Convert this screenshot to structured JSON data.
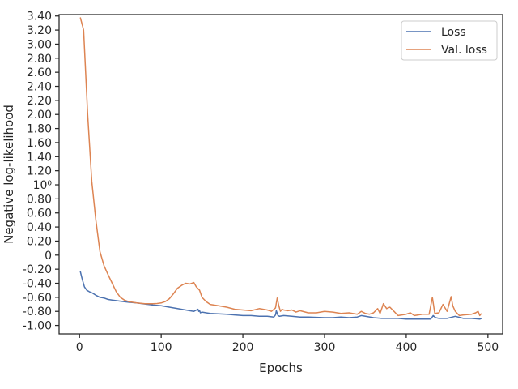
{
  "chart_data": {
    "type": "line",
    "title": "",
    "xlabel": "Epochs",
    "ylabel": "Negative log-likelihood",
    "xlim": [
      -25,
      518
    ],
    "ylim": [
      -1.12,
      3.42
    ],
    "x_ticks": [
      0,
      100,
      200,
      300,
      400,
      500
    ],
    "x_tick_labels": [
      "0",
      "100",
      "200",
      "300",
      "400",
      "500"
    ],
    "y_ticks": [
      -1.0,
      -0.8,
      -0.6,
      -0.4,
      -0.2,
      0,
      0.2,
      0.4,
      0.6,
      0.8,
      1.0,
      1.2,
      1.4,
      1.6,
      1.8,
      2.0,
      2.2,
      2.4,
      2.6,
      2.8,
      3.0,
      3.2,
      3.4
    ],
    "y_tick_labels": [
      "-1.00",
      "-0.80",
      "-0.60",
      "-0.40",
      "-0.20",
      "0",
      "0.20",
      "0.40",
      "0.60",
      "0.80",
      "10⁰",
      "1.20",
      "1.40",
      "1.60",
      "1.80",
      "2.00",
      "2.20",
      "2.40",
      "2.60",
      "2.80",
      "3.00",
      "3.20",
      "3.40"
    ],
    "grid": false,
    "legend_position": "top-right",
    "series": [
      {
        "name": "Loss",
        "color": "#4c72b0",
        "x": [
          1,
          3,
          6,
          9,
          12,
          16,
          20,
          25,
          30,
          35,
          40,
          50,
          60,
          70,
          80,
          90,
          100,
          110,
          120,
          130,
          140,
          145,
          146,
          147,
          148,
          150,
          160,
          170,
          180,
          190,
          200,
          210,
          220,
          230,
          238,
          240,
          241,
          243,
          245,
          250,
          260,
          270,
          280,
          290,
          300,
          310,
          320,
          330,
          340,
          345,
          350,
          360,
          370,
          380,
          390,
          400,
          410,
          420,
          430,
          433,
          436,
          440,
          450,
          460,
          470,
          480,
          490,
          492
        ],
        "y": [
          -0.23,
          -0.33,
          -0.45,
          -0.5,
          -0.52,
          -0.54,
          -0.57,
          -0.6,
          -0.61,
          -0.63,
          -0.64,
          -0.655,
          -0.67,
          -0.68,
          -0.695,
          -0.71,
          -0.72,
          -0.74,
          -0.76,
          -0.78,
          -0.8,
          -0.77,
          -0.8,
          -0.79,
          -0.82,
          -0.81,
          -0.83,
          -0.835,
          -0.84,
          -0.85,
          -0.86,
          -0.86,
          -0.87,
          -0.87,
          -0.88,
          -0.85,
          -0.79,
          -0.86,
          -0.87,
          -0.86,
          -0.87,
          -0.88,
          -0.88,
          -0.885,
          -0.89,
          -0.89,
          -0.88,
          -0.89,
          -0.88,
          -0.86,
          -0.87,
          -0.89,
          -0.9,
          -0.9,
          -0.9,
          -0.91,
          -0.91,
          -0.91,
          -0.91,
          -0.86,
          -0.89,
          -0.9,
          -0.9,
          -0.87,
          -0.9,
          -0.9,
          -0.91,
          -0.9
        ]
      },
      {
        "name": "Val. loss",
        "color": "#dd8452",
        "x": [
          1,
          5,
          10,
          15,
          20,
          25,
          30,
          35,
          40,
          45,
          50,
          55,
          60,
          70,
          80,
          90,
          95,
          100,
          105,
          110,
          115,
          120,
          125,
          130,
          135,
          140,
          143,
          147,
          150,
          155,
          160,
          170,
          180,
          190,
          200,
          210,
          220,
          230,
          235,
          240,
          242,
          244,
          246,
          248,
          250,
          255,
          260,
          265,
          270,
          280,
          290,
          300,
          310,
          320,
          330,
          340,
          345,
          350,
          355,
          360,
          365,
          368,
          372,
          376,
          380,
          385,
          390,
          400,
          405,
          410,
          420,
          428,
          432,
          435,
          440,
          445,
          450,
          455,
          457,
          460,
          465,
          470,
          480,
          485,
          488,
          490,
          492
        ],
        "y": [
          3.38,
          3.2,
          2.0,
          1.05,
          0.5,
          0.05,
          -0.15,
          -0.28,
          -0.4,
          -0.52,
          -0.6,
          -0.64,
          -0.66,
          -0.68,
          -0.69,
          -0.69,
          -0.688,
          -0.68,
          -0.66,
          -0.62,
          -0.55,
          -0.47,
          -0.43,
          -0.4,
          -0.41,
          -0.39,
          -0.45,
          -0.5,
          -0.6,
          -0.66,
          -0.7,
          -0.72,
          -0.74,
          -0.77,
          -0.78,
          -0.79,
          -0.76,
          -0.78,
          -0.8,
          -0.75,
          -0.61,
          -0.72,
          -0.8,
          -0.77,
          -0.78,
          -0.79,
          -0.78,
          -0.81,
          -0.79,
          -0.82,
          -0.82,
          -0.8,
          -0.81,
          -0.83,
          -0.82,
          -0.84,
          -0.8,
          -0.83,
          -0.84,
          -0.82,
          -0.76,
          -0.83,
          -0.69,
          -0.76,
          -0.74,
          -0.8,
          -0.86,
          -0.84,
          -0.82,
          -0.86,
          -0.84,
          -0.84,
          -0.6,
          -0.83,
          -0.82,
          -0.7,
          -0.8,
          -0.59,
          -0.72,
          -0.8,
          -0.86,
          -0.85,
          -0.84,
          -0.82,
          -0.8,
          -0.86,
          -0.83
        ]
      }
    ]
  }
}
